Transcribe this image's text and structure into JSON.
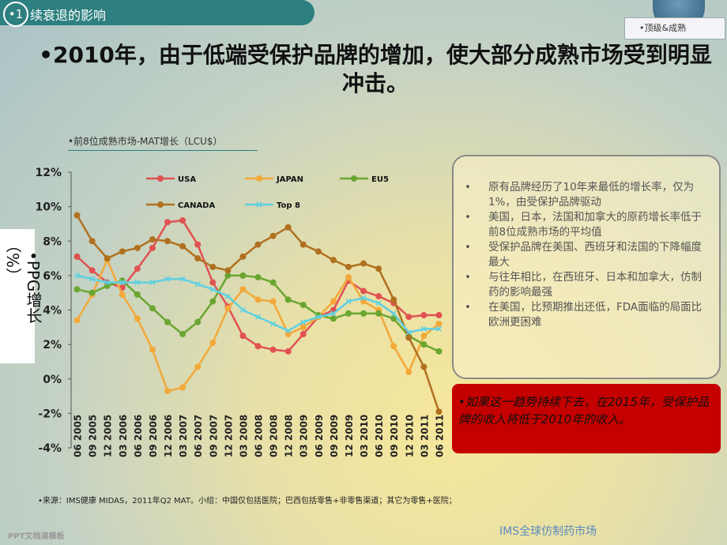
{
  "header": {
    "number": "•1",
    "section": "续衰退的影响",
    "tag": "•顶级&成熟"
  },
  "title": "•2010年，由于低端受保护品牌的增加，使大部分成熟市场受到明显冲击。",
  "chart_data": {
    "type": "line",
    "title": "•前8位成熟市场-MAT增长（LCU$）",
    "ylabel": "（%）",
    "ylabel_note": "•PPG增长",
    "categories": [
      "06 2005",
      "09 2005",
      "12 2005",
      "03 2006",
      "06 2006",
      "09 2006",
      "12 2006",
      "03 2007",
      "06 2007",
      "09 2007",
      "12 2007",
      "03 2008",
      "06 2008",
      "09 2008",
      "12 2008",
      "03 2009",
      "06 2009",
      "09 2009",
      "12 2009",
      "03 2010",
      "06 2010",
      "09 2010",
      "12 2010",
      "03 2011",
      "06 2011"
    ],
    "ylim": [
      -4,
      12
    ],
    "yticks": [
      {
        "value": -4,
        "label": "-4%"
      },
      {
        "value": -2,
        "label": "-2%"
      },
      {
        "value": 0,
        "label": "0%"
      },
      {
        "value": 2,
        "label": "2%"
      },
      {
        "value": 4,
        "label": "4%"
      },
      {
        "value": 6,
        "label": "6%"
      },
      {
        "value": 8,
        "label": "8%"
      },
      {
        "value": 10,
        "label": "10%"
      },
      {
        "value": 12,
        "label": "12%"
      }
    ],
    "grid": false,
    "series": [
      {
        "name": "USA",
        "color": "#e05252",
        "marker": "circle",
        "values": [
          7.1,
          6.3,
          5.6,
          5.3,
          6.4,
          7.6,
          9.1,
          9.2,
          7.8,
          5.6,
          4.2,
          2.5,
          1.9,
          1.7,
          1.6,
          2.6,
          3.6,
          4.0,
          5.7,
          5.1,
          4.8,
          4.4,
          3.6,
          3.7,
          3.7
        ]
      },
      {
        "name": "JAPAN",
        "color": "#f2a93a",
        "marker": "circle",
        "values": [
          3.4,
          4.9,
          6.9,
          4.9,
          3.5,
          1.7,
          -0.7,
          -0.5,
          0.7,
          2.1,
          4.1,
          5.2,
          4.6,
          4.5,
          2.6,
          3.0,
          3.6,
          4.5,
          5.9,
          4.5,
          4.0,
          1.9,
          0.4,
          2.5,
          3.2
        ]
      },
      {
        "name": "EU5",
        "color": "#6aa631",
        "marker": "circle",
        "values": [
          5.2,
          5.0,
          5.4,
          5.7,
          4.9,
          4.1,
          3.3,
          2.6,
          3.3,
          4.5,
          6.0,
          6.0,
          5.9,
          5.6,
          4.6,
          4.3,
          3.7,
          3.5,
          3.8,
          3.8,
          3.8,
          3.5,
          2.5,
          2.0,
          1.6
        ]
      },
      {
        "name": "CANADA",
        "color": "#b0701f",
        "marker": "circle",
        "values": [
          9.5,
          8.0,
          7.0,
          7.4,
          7.6,
          8.1,
          8.0,
          7.7,
          7.0,
          6.5,
          6.3,
          7.1,
          7.8,
          8.3,
          8.8,
          7.8,
          7.4,
          6.9,
          6.5,
          6.7,
          6.4,
          4.6,
          2.4,
          0.7,
          -1.9
        ]
      },
      {
        "name": "Top 8",
        "color": "#5fd0e2",
        "marker": "x",
        "values": [
          6.0,
          5.8,
          5.6,
          5.6,
          5.6,
          5.6,
          5.8,
          5.8,
          5.5,
          5.2,
          4.8,
          4.0,
          3.6,
          3.2,
          2.8,
          3.3,
          3.6,
          3.8,
          4.5,
          4.7,
          4.4,
          3.8,
          2.7,
          2.9,
          2.9
        ]
      }
    ]
  },
  "notes": [
    "原有品牌经历了10年来最低的增长率，仅为1%，由受保护品牌驱动",
    "美国，日本，法国和加拿大的原药增长率低于前8位成熟市场的平均值",
    "受保护品牌在美国、西班牙和法国的下降幅度最大",
    "与往年相比，在西班牙、日本和加拿大，仿制药的影响最强",
    "在美国，比预期推出还低，FDA面临的局面比欧洲更困难"
  ],
  "warning": "•如果这一趋势持续下去，在2015年，受保护品牌的收入将低于2010年的收入。",
  "source": "•来源：IMS健康 MIDAS，2011年Q2 MAT。小组：中国仅包括医院；巴西包括零售+非零售渠道；其它为零售+医院；",
  "footer": {
    "left": "PPT文档演模板",
    "right": "IMS全球仿制药市场"
  }
}
